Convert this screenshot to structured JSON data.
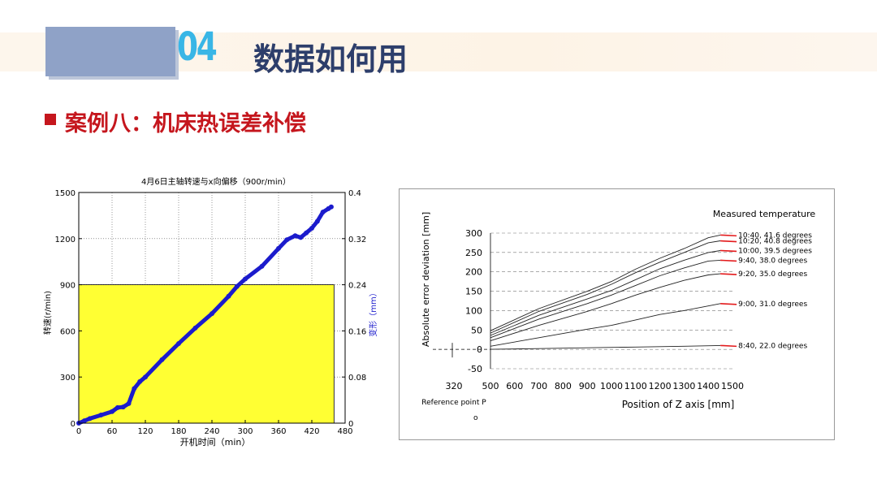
{
  "header": {
    "number": "04",
    "title": "数据如何用"
  },
  "case": {
    "title": "案例八：机床热误差补偿"
  },
  "colors": {
    "accent_blue": "#39b6e6",
    "title_navy": "#2d3e6b",
    "case_red": "#c5161d",
    "block_fill": "#8fa2c7",
    "yellow_fill": "#ffff33",
    "series_blue": "#1b1bcc"
  },
  "chart_data": [
    {
      "type": "area",
      "title": "4月6日主轴转速与x向偏移（900r/min）",
      "xlabel": "开机时间（min）",
      "ylabel_left": "转速(r/min)",
      "ylabel_right": "变形（mm）",
      "xlim": [
        0,
        480
      ],
      "ylim_left": [
        0,
        1500
      ],
      "ylim_right": [
        0,
        0.4
      ],
      "x_ticks": [
        "0",
        "60",
        "120",
        "180",
        "240",
        "300",
        "360",
        "420",
        "480"
      ],
      "y_left_ticks": [
        "0",
        "300",
        "600",
        "900",
        "1200",
        "1500"
      ],
      "y_right_ticks": [
        "0",
        "0.08",
        "0.16",
        "0.24",
        "0.32",
        "0.4"
      ],
      "grid": true,
      "series": [
        {
          "axis": "left",
          "kind": "area",
          "x": [
            0,
            460
          ],
          "y": [
            900,
            900
          ]
        },
        {
          "axis": "right",
          "kind": "line",
          "x": [
            0,
            10,
            20,
            40,
            60,
            70,
            80,
            90,
            100,
            110,
            120,
            150,
            180,
            210,
            240,
            270,
            285,
            300,
            330,
            360,
            375,
            390,
            400,
            410,
            420,
            430,
            440,
            450,
            455
          ],
          "y": [
            0.0,
            0.004,
            0.008,
            0.014,
            0.02,
            0.027,
            0.028,
            0.034,
            0.06,
            0.072,
            0.08,
            0.11,
            0.138,
            0.165,
            0.19,
            0.22,
            0.237,
            0.25,
            0.272,
            0.303,
            0.318,
            0.325,
            0.322,
            0.33,
            0.338,
            0.35,
            0.366,
            0.372,
            0.375
          ]
        }
      ]
    },
    {
      "type": "line",
      "legend_title": "Measured temperature",
      "xlabel": "Position of Z axis [mm]",
      "ylabel": "Absolute error deviation [mm]",
      "x_ticks": [
        "320",
        "500",
        "600",
        "700",
        "800",
        "900",
        "1000",
        "1100",
        "1200",
        "1300",
        "1400",
        "1500"
      ],
      "y_ticks": [
        "-50",
        "0",
        "50",
        "100",
        "150",
        "200",
        "250",
        "300"
      ],
      "reference_label": "Reference point P",
      "reference_subscript": "o",
      "grid": "dashed-horizontal",
      "series": [
        {
          "name": "10:40, 41.6 degrees",
          "x": [
            500,
            700,
            900,
            1000,
            1100,
            1200,
            1300,
            1400,
            1450
          ],
          "y": [
            48,
            105,
            150,
            175,
            207,
            235,
            260,
            288,
            295
          ]
        },
        {
          "name": "10:20, 40.8 degrees",
          "x": [
            500,
            700,
            900,
            1000,
            1100,
            1200,
            1300,
            1400,
            1450
          ],
          "y": [
            42,
            98,
            142,
            168,
            198,
            225,
            250,
            275,
            280
          ]
        },
        {
          "name": "10:00, 39.5 degrees",
          "x": [
            500,
            700,
            900,
            1000,
            1100,
            1200,
            1300,
            1400,
            1450
          ],
          "y": [
            36,
            88,
            130,
            152,
            180,
            208,
            230,
            250,
            255
          ]
        },
        {
          "name": "9:40, 38.0 degrees",
          "x": [
            500,
            700,
            900,
            1000,
            1100,
            1200,
            1300,
            1400,
            1450
          ],
          "y": [
            30,
            78,
            118,
            140,
            165,
            190,
            210,
            228,
            230
          ]
        },
        {
          "name": "9:20, 35.0 degrees",
          "x": [
            500,
            700,
            900,
            1000,
            1100,
            1200,
            1300,
            1400,
            1450
          ],
          "y": [
            22,
            62,
            98,
            118,
            140,
            160,
            178,
            192,
            195
          ]
        },
        {
          "name": "9:00, 31.0 degrees",
          "x": [
            500,
            700,
            900,
            1000,
            1100,
            1200,
            1300,
            1400,
            1450
          ],
          "y": [
            8,
            30,
            52,
            62,
            76,
            90,
            100,
            112,
            118
          ]
        },
        {
          "name": "8:40, 22.0 degrees",
          "x": [
            500,
            700,
            900,
            1100,
            1300,
            1450
          ],
          "y": [
            0,
            2,
            4,
            6,
            8,
            10
          ]
        }
      ]
    }
  ]
}
